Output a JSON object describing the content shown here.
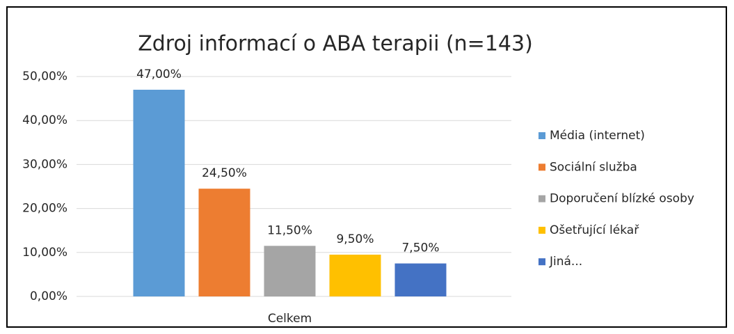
{
  "chart_data": {
    "type": "bar",
    "title": "Zdroj informací o ABA terapii (n=143)",
    "categories": [
      "Celkem"
    ],
    "series": [
      {
        "name": "Média (internet)",
        "color": "#5b9bd5",
        "values": [
          47
        ],
        "value_labels": [
          "47,00%"
        ]
      },
      {
        "name": "Sociální služba",
        "color": "#ed7d31",
        "values": [
          24.5
        ],
        "value_labels": [
          "24,50%"
        ]
      },
      {
        "name": "Doporučení blízké osoby",
        "color": "#a5a5a5",
        "values": [
          11.5
        ],
        "value_labels": [
          "11,50%"
        ]
      },
      {
        "name": "Ošetřující lékař",
        "color": "#ffc000",
        "values": [
          9.5
        ],
        "value_labels": [
          "9,50%"
        ]
      },
      {
        "name": "Jiná...",
        "color": "#4472c4",
        "values": [
          7.5
        ],
        "value_labels": [
          "7,50%"
        ]
      }
    ],
    "ylim": [
      0,
      50
    ],
    "yticks": [
      {
        "value": 0,
        "label": "0,00%"
      },
      {
        "value": 10,
        "label": "10,00%"
      },
      {
        "value": 20,
        "label": "20,00%"
      },
      {
        "value": 30,
        "label": "30,00%"
      },
      {
        "value": 40,
        "label": "40,00%"
      },
      {
        "value": 50,
        "label": "50,00%"
      }
    ],
    "grid": true,
    "legend": "right"
  }
}
